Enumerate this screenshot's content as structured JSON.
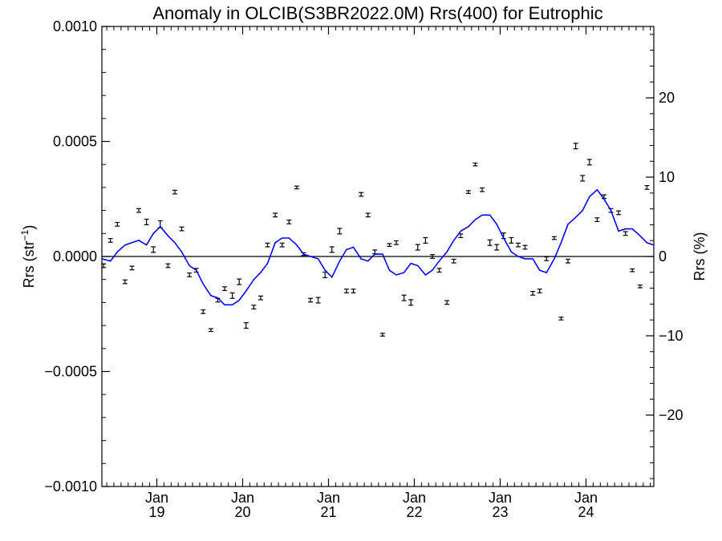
{
  "chart_data": {
    "type": "line",
    "title": "Anomaly in OLCIB(S3BR2022.0M) Rrs(400) for Eutrophic",
    "ylabel_left": "Rrs (str",
    "ylabel_left_sup": "−1",
    "ylabel_left_close": ")",
    "ylabel_right": "Rrs (%)",
    "xlim": [
      2018.36,
      2024.79
    ],
    "ylim": [
      -0.001,
      0.001
    ],
    "ylim_right_percent": [
      -29,
      29
    ],
    "zero_line": true,
    "grid": false,
    "legend": "none",
    "y_ticks": [
      {
        "value": 0.001,
        "label": "0.0010"
      },
      {
        "value": 0.0005,
        "label": "0.0005"
      },
      {
        "value": 0.0,
        "label": "0.0000"
      },
      {
        "value": -0.0005,
        "label": "−0.0005"
      },
      {
        "value": -0.001,
        "label": "−0.0010"
      }
    ],
    "y_right_ticks": [
      {
        "value": 20,
        "label": "20"
      },
      {
        "value": 10,
        "label": "10"
      },
      {
        "value": 0,
        "label": "0"
      },
      {
        "value": -10,
        "label": "−10"
      },
      {
        "value": -20,
        "label": "−20"
      }
    ],
    "x_ticks": [
      {
        "value": 2019.0,
        "month": "Jan",
        "year": "19"
      },
      {
        "value": 2020.0,
        "month": "Jan",
        "year": "20"
      },
      {
        "value": 2021.0,
        "month": "Jan",
        "year": "21"
      },
      {
        "value": 2022.0,
        "month": "Jan",
        "year": "22"
      },
      {
        "value": 2023.0,
        "month": "Jan",
        "year": "23"
      },
      {
        "value": 2024.0,
        "month": "Jan",
        "year": "24"
      }
    ],
    "colors": {
      "smoothed_line": "#0000ff",
      "points": "#000000",
      "axes": "#000000"
    },
    "series": [
      {
        "kind": "errorbar",
        "points": [
          {
            "x": 2018.38,
            "y": -4e-05,
            "err": 8e-06
          },
          {
            "x": 2018.46,
            "y": 7e-05,
            "err": 8e-06
          },
          {
            "x": 2018.54,
            "y": 0.00014,
            "err": 8e-06
          },
          {
            "x": 2018.63,
            "y": -0.00011,
            "err": 8e-06
          },
          {
            "x": 2018.71,
            "y": -5e-05,
            "err": 8e-06
          },
          {
            "x": 2018.79,
            "y": 0.0002,
            "err": 8e-06
          },
          {
            "x": 2018.88,
            "y": 0.00015,
            "err": 1.2e-05
          },
          {
            "x": 2018.96,
            "y": 3e-05,
            "err": 1.2e-05
          },
          {
            "x": 2019.04,
            "y": 0.00014,
            "err": 1.5e-05
          },
          {
            "x": 2019.13,
            "y": -4e-05,
            "err": 8e-06
          },
          {
            "x": 2019.21,
            "y": 0.00028,
            "err": 8e-06
          },
          {
            "x": 2019.29,
            "y": 0.00012,
            "err": 8e-06
          },
          {
            "x": 2019.38,
            "y": -8e-05,
            "err": 8e-06
          },
          {
            "x": 2019.46,
            "y": -6e-05,
            "err": 8e-06
          },
          {
            "x": 2019.54,
            "y": -0.00024,
            "err": 8e-06
          },
          {
            "x": 2019.63,
            "y": -0.00032,
            "err": 6e-06
          },
          {
            "x": 2019.71,
            "y": -0.00019,
            "err": 8e-06
          },
          {
            "x": 2019.79,
            "y": -0.00014,
            "err": 8e-06
          },
          {
            "x": 2019.88,
            "y": -0.00017,
            "err": 1.2e-05
          },
          {
            "x": 2019.96,
            "y": -0.00011,
            "err": 1.2e-05
          },
          {
            "x": 2020.04,
            "y": -0.0003,
            "err": 1.2e-05
          },
          {
            "x": 2020.13,
            "y": -0.00022,
            "err": 8e-06
          },
          {
            "x": 2020.21,
            "y": -0.00018,
            "err": 8e-06
          },
          {
            "x": 2020.29,
            "y": 5e-05,
            "err": 8e-06
          },
          {
            "x": 2020.38,
            "y": 0.00018,
            "err": 8e-06
          },
          {
            "x": 2020.46,
            "y": 5e-05,
            "err": 8e-06
          },
          {
            "x": 2020.54,
            "y": 0.00015,
            "err": 8e-06
          },
          {
            "x": 2020.63,
            "y": 0.0003,
            "err": 6e-06
          },
          {
            "x": 2020.71,
            "y": 1e-05,
            "err": 6e-06
          },
          {
            "x": 2020.79,
            "y": -0.00019,
            "err": 8e-06
          },
          {
            "x": 2020.88,
            "y": -0.00019,
            "err": 1.2e-05
          },
          {
            "x": 2020.96,
            "y": -8e-05,
            "err": 1.2e-05
          },
          {
            "x": 2021.04,
            "y": 3e-05,
            "err": 1.2e-05
          },
          {
            "x": 2021.13,
            "y": 0.00011,
            "err": 1.2e-05
          },
          {
            "x": 2021.21,
            "y": -0.00015,
            "err": 8e-06
          },
          {
            "x": 2021.29,
            "y": -0.00015,
            "err": 8e-06
          },
          {
            "x": 2021.38,
            "y": 0.00027,
            "err": 8e-06
          },
          {
            "x": 2021.46,
            "y": 0.00018,
            "err": 8e-06
          },
          {
            "x": 2021.54,
            "y": 2e-05,
            "err": 8e-06
          },
          {
            "x": 2021.63,
            "y": -0.00034,
            "err": 6e-06
          },
          {
            "x": 2021.71,
            "y": 5e-05,
            "err": 6e-06
          },
          {
            "x": 2021.79,
            "y": 6e-05,
            "err": 8e-06
          },
          {
            "x": 2021.88,
            "y": -0.00018,
            "err": 1.2e-05
          },
          {
            "x": 2021.96,
            "y": -0.0002,
            "err": 1.2e-05
          },
          {
            "x": 2022.04,
            "y": 4e-05,
            "err": 1.2e-05
          },
          {
            "x": 2022.13,
            "y": 7e-05,
            "err": 1.2e-05
          },
          {
            "x": 2022.21,
            "y": 0.0,
            "err": 8e-06
          },
          {
            "x": 2022.29,
            "y": -6e-05,
            "err": 8e-06
          },
          {
            "x": 2022.38,
            "y": -0.0002,
            "err": 8e-06
          },
          {
            "x": 2022.46,
            "y": -2e-05,
            "err": 8e-06
          },
          {
            "x": 2022.54,
            "y": 9e-05,
            "err": 8e-06
          },
          {
            "x": 2022.63,
            "y": 0.00028,
            "err": 6e-06
          },
          {
            "x": 2022.71,
            "y": 0.0004,
            "err": 6e-06
          },
          {
            "x": 2022.79,
            "y": 0.00029,
            "err": 8e-06
          },
          {
            "x": 2022.88,
            "y": 6e-05,
            "err": 1.2e-05
          },
          {
            "x": 2022.96,
            "y": 4e-05,
            "err": 1.2e-05
          },
          {
            "x": 2023.04,
            "y": 9e-05,
            "err": 1.2e-05
          },
          {
            "x": 2023.13,
            "y": 7e-05,
            "err": 1.2e-05
          },
          {
            "x": 2023.21,
            "y": 5e-05,
            "err": 8e-06
          },
          {
            "x": 2023.29,
            "y": 4e-05,
            "err": 8e-06
          },
          {
            "x": 2023.38,
            "y": -0.00016,
            "err": 8e-06
          },
          {
            "x": 2023.46,
            "y": -0.00015,
            "err": 8e-06
          },
          {
            "x": 2023.54,
            "y": -1e-05,
            "err": 8e-06
          },
          {
            "x": 2023.63,
            "y": 8e-05,
            "err": 6e-06
          },
          {
            "x": 2023.71,
            "y": -0.00027,
            "err": 6e-06
          },
          {
            "x": 2023.79,
            "y": -2e-05,
            "err": 8e-06
          },
          {
            "x": 2023.88,
            "y": 0.00048,
            "err": 1.2e-05
          },
          {
            "x": 2023.96,
            "y": 0.00034,
            "err": 1.2e-05
          },
          {
            "x": 2024.04,
            "y": 0.00041,
            "err": 1.2e-05
          },
          {
            "x": 2024.13,
            "y": 0.00016,
            "err": 8e-06
          },
          {
            "x": 2024.21,
            "y": 0.00026,
            "err": 8e-06
          },
          {
            "x": 2024.29,
            "y": 0.0002,
            "err": 8e-06
          },
          {
            "x": 2024.38,
            "y": 0.00019,
            "err": 8e-06
          },
          {
            "x": 2024.46,
            "y": 0.0001,
            "err": 8e-06
          },
          {
            "x": 2024.54,
            "y": -6e-05,
            "err": 6e-06
          },
          {
            "x": 2024.63,
            "y": -0.00013,
            "err": 6e-06
          },
          {
            "x": 2024.71,
            "y": 0.0003,
            "err": 8e-06
          }
        ]
      },
      {
        "kind": "line",
        "points": [
          {
            "x": 2018.36,
            "y": -1e-05
          },
          {
            "x": 2018.46,
            "y": -2e-05
          },
          {
            "x": 2018.54,
            "y": 2e-05
          },
          {
            "x": 2018.63,
            "y": 5e-05
          },
          {
            "x": 2018.71,
            "y": 6e-05
          },
          {
            "x": 2018.79,
            "y": 7e-05
          },
          {
            "x": 2018.88,
            "y": 5e-05
          },
          {
            "x": 2018.96,
            "y": 0.0001
          },
          {
            "x": 2019.04,
            "y": 0.00013
          },
          {
            "x": 2019.13,
            "y": 9e-05
          },
          {
            "x": 2019.21,
            "y": 6e-05
          },
          {
            "x": 2019.29,
            "y": 2e-05
          },
          {
            "x": 2019.38,
            "y": -4e-05
          },
          {
            "x": 2019.46,
            "y": -6e-05
          },
          {
            "x": 2019.54,
            "y": -0.00012
          },
          {
            "x": 2019.63,
            "y": -0.00017
          },
          {
            "x": 2019.71,
            "y": -0.00018
          },
          {
            "x": 2019.79,
            "y": -0.00021
          },
          {
            "x": 2019.88,
            "y": -0.00021
          },
          {
            "x": 2019.96,
            "y": -0.00019
          },
          {
            "x": 2020.04,
            "y": -0.00015
          },
          {
            "x": 2020.13,
            "y": -0.0001
          },
          {
            "x": 2020.21,
            "y": -7e-05
          },
          {
            "x": 2020.29,
            "y": -3e-05
          },
          {
            "x": 2020.38,
            "y": 6e-05
          },
          {
            "x": 2020.46,
            "y": 8e-05
          },
          {
            "x": 2020.54,
            "y": 8e-05
          },
          {
            "x": 2020.63,
            "y": 5e-05
          },
          {
            "x": 2020.71,
            "y": 1e-05
          },
          {
            "x": 2020.79,
            "y": 0.0
          },
          {
            "x": 2020.88,
            "y": -1e-05
          },
          {
            "x": 2020.96,
            "y": -6e-05
          },
          {
            "x": 2021.04,
            "y": -9e-05
          },
          {
            "x": 2021.13,
            "y": -2e-05
          },
          {
            "x": 2021.21,
            "y": 3e-05
          },
          {
            "x": 2021.29,
            "y": 4e-05
          },
          {
            "x": 2021.38,
            "y": -1e-05
          },
          {
            "x": 2021.46,
            "y": -2e-05
          },
          {
            "x": 2021.54,
            "y": 1e-05
          },
          {
            "x": 2021.63,
            "y": 1e-05
          },
          {
            "x": 2021.71,
            "y": -6e-05
          },
          {
            "x": 2021.79,
            "y": -8e-05
          },
          {
            "x": 2021.88,
            "y": -7e-05
          },
          {
            "x": 2021.96,
            "y": -3e-05
          },
          {
            "x": 2022.04,
            "y": -4e-05
          },
          {
            "x": 2022.13,
            "y": -8e-05
          },
          {
            "x": 2022.21,
            "y": -6e-05
          },
          {
            "x": 2022.29,
            "y": -2e-05
          },
          {
            "x": 2022.38,
            "y": 2e-05
          },
          {
            "x": 2022.46,
            "y": 7e-05
          },
          {
            "x": 2022.54,
            "y": 0.00011
          },
          {
            "x": 2022.63,
            "y": 0.00013
          },
          {
            "x": 2022.71,
            "y": 0.00016
          },
          {
            "x": 2022.79,
            "y": 0.00018
          },
          {
            "x": 2022.88,
            "y": 0.00018
          },
          {
            "x": 2022.96,
            "y": 0.00014
          },
          {
            "x": 2023.04,
            "y": 8e-05
          },
          {
            "x": 2023.13,
            "y": 2e-05
          },
          {
            "x": 2023.21,
            "y": 0.0
          },
          {
            "x": 2023.29,
            "y": -1e-05
          },
          {
            "x": 2023.38,
            "y": -1e-05
          },
          {
            "x": 2023.46,
            "y": -6e-05
          },
          {
            "x": 2023.54,
            "y": -7e-05
          },
          {
            "x": 2023.63,
            "y": -1e-05
          },
          {
            "x": 2023.71,
            "y": 6e-05
          },
          {
            "x": 2023.79,
            "y": 0.00014
          },
          {
            "x": 2023.88,
            "y": 0.00017
          },
          {
            "x": 2023.96,
            "y": 0.0002
          },
          {
            "x": 2024.04,
            "y": 0.00026
          },
          {
            "x": 2024.13,
            "y": 0.00029
          },
          {
            "x": 2024.21,
            "y": 0.00025
          },
          {
            "x": 2024.29,
            "y": 0.0002
          },
          {
            "x": 2024.38,
            "y": 0.00011
          },
          {
            "x": 2024.46,
            "y": 0.00012
          },
          {
            "x": 2024.54,
            "y": 0.00012
          },
          {
            "x": 2024.63,
            "y": 9e-05
          },
          {
            "x": 2024.71,
            "y": 6e-05
          },
          {
            "x": 2024.79,
            "y": 5e-05
          }
        ]
      }
    ]
  }
}
